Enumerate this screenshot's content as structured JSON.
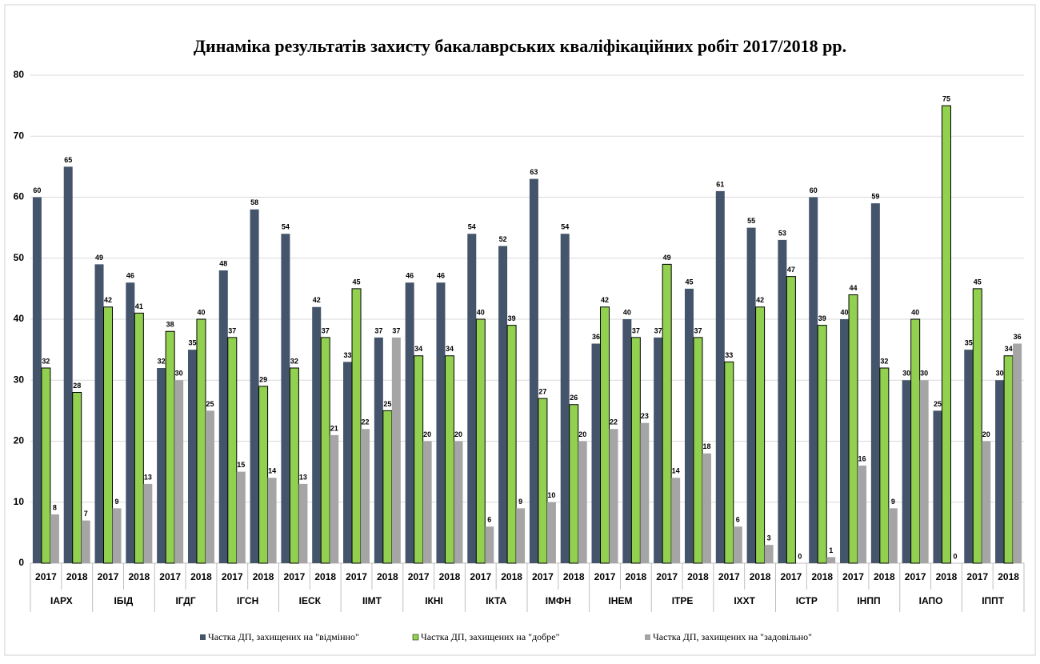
{
  "chart_data": {
    "type": "bar",
    "title": "Динаміка результатів захисту бакалаврських кваліфікаційних робіт 2017/2018 рр.",
    "categories": [
      "2017",
      "2018",
      "2017",
      "2018",
      "2017",
      "2018",
      "2017",
      "2018",
      "2017",
      "2018",
      "2017",
      "2018",
      "2017",
      "2018",
      "2017",
      "2018",
      "2017",
      "2018",
      "2017",
      "2018",
      "2017",
      "2018",
      "2017",
      "2018",
      "2017",
      "2018",
      "2017",
      "2018",
      "2017",
      "2018",
      "2017",
      "2018"
    ],
    "category_groups": [
      "ІАРХ",
      "ІБІД",
      "ІГДГ",
      "ІГСН",
      "ІЕСК",
      "ІІМТ",
      "ІКНІ",
      "ІКТА",
      "ІМФН",
      "ІНЕМ",
      "ІТРЕ",
      "ІХХТ",
      "ІСТР",
      "ІНПП",
      "ІАПО",
      "ІППТ"
    ],
    "series": [
      {
        "name": "Частка ДП, захищених на \"відмінно\"",
        "color": "#44546a",
        "values": [
          60,
          65,
          49,
          46,
          32,
          35,
          48,
          58,
          54,
          42,
          33,
          37,
          46,
          46,
          54,
          52,
          63,
          54,
          36,
          40,
          37,
          45,
          61,
          55,
          53,
          60,
          40,
          59,
          30,
          25,
          35,
          30
        ]
      },
      {
        "name": "Частка ДП, захищених на \"добре\"",
        "color": "#92d050",
        "values": [
          32,
          28,
          42,
          41,
          38,
          40,
          37,
          29,
          32,
          37,
          45,
          25,
          34,
          34,
          40,
          39,
          27,
          26,
          42,
          37,
          49,
          37,
          33,
          42,
          47,
          39,
          44,
          32,
          40,
          75,
          45,
          34
        ]
      },
      {
        "name": "Частка ДП, захищених на \"задовільно\"",
        "color": "#a5a5a5",
        "values": [
          8,
          7,
          9,
          13,
          30,
          25,
          15,
          14,
          13,
          21,
          22,
          37,
          20,
          20,
          6,
          9,
          10,
          20,
          22,
          23,
          14,
          18,
          6,
          3,
          0,
          1,
          16,
          9,
          30,
          0,
          20,
          36
        ]
      }
    ],
    "ylim": [
      0,
      80
    ],
    "yticks": [
      0,
      10,
      20,
      30,
      40,
      50,
      60,
      70,
      80
    ],
    "grid": true,
    "legend": "bottom"
  }
}
